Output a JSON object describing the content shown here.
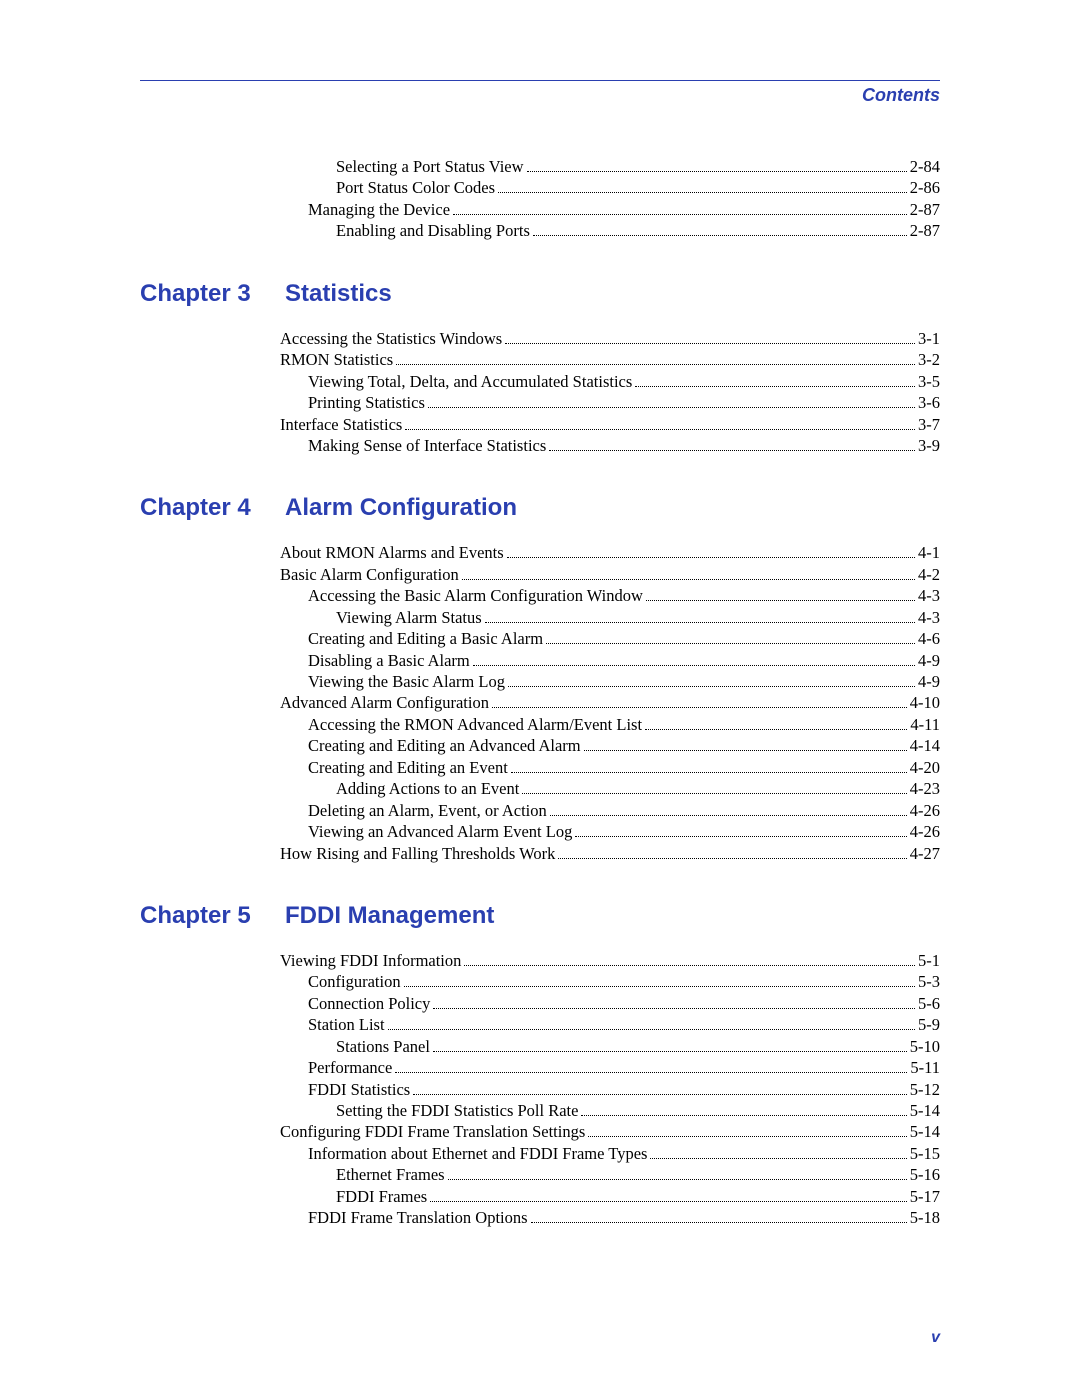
{
  "header": {
    "label": "Contents"
  },
  "page_number": "v",
  "colors": {
    "accent": "#2a3fb0",
    "text": "#000000",
    "background": "#ffffff"
  },
  "intro_entries": [
    {
      "title": "Selecting a Port Status View",
      "page": "2-84",
      "indent": 2
    },
    {
      "title": "Port Status Color Codes",
      "page": "2-86",
      "indent": 2
    },
    {
      "title": "Managing the Device",
      "page": "2-87",
      "indent": 1
    },
    {
      "title": "Enabling and Disabling Ports",
      "page": "2-87",
      "indent": 2
    }
  ],
  "chapters": [
    {
      "label": "Chapter 3",
      "title": "Statistics",
      "entries": [
        {
          "title": "Accessing the Statistics Windows",
          "page": "3-1",
          "indent": 0
        },
        {
          "title": "RMON Statistics",
          "page": "3-2",
          "indent": 0
        },
        {
          "title": "Viewing Total, Delta, and Accumulated Statistics",
          "page": "3-5",
          "indent": 1
        },
        {
          "title": "Printing Statistics",
          "page": "3-6",
          "indent": 1
        },
        {
          "title": "Interface Statistics",
          "page": "3-7",
          "indent": 0
        },
        {
          "title": "Making Sense of Interface Statistics",
          "page": "3-9",
          "indent": 1
        }
      ]
    },
    {
      "label": "Chapter 4",
      "title": "Alarm Configuration",
      "entries": [
        {
          "title": "About RMON Alarms and Events",
          "page": "4-1",
          "indent": 0
        },
        {
          "title": "Basic Alarm Configuration",
          "page": "4-2",
          "indent": 0
        },
        {
          "title": "Accessing the Basic Alarm Configuration Window",
          "page": "4-3",
          "indent": 1
        },
        {
          "title": "Viewing Alarm Status",
          "page": "4-3",
          "indent": 2
        },
        {
          "title": "Creating and Editing a Basic Alarm",
          "page": "4-6",
          "indent": 1
        },
        {
          "title": "Disabling a Basic Alarm",
          "page": "4-9",
          "indent": 1
        },
        {
          "title": "Viewing the Basic Alarm Log",
          "page": "4-9",
          "indent": 1
        },
        {
          "title": "Advanced Alarm Configuration",
          "page": "4-10",
          "indent": 0
        },
        {
          "title": "Accessing the RMON Advanced Alarm/Event List",
          "page": "4-11",
          "indent": 1
        },
        {
          "title": "Creating and Editing an Advanced Alarm",
          "page": "4-14",
          "indent": 1
        },
        {
          "title": "Creating and Editing an Event",
          "page": "4-20",
          "indent": 1
        },
        {
          "title": "Adding Actions to an Event",
          "page": "4-23",
          "indent": 2
        },
        {
          "title": "Deleting an Alarm, Event, or Action",
          "page": "4-26",
          "indent": 1
        },
        {
          "title": "Viewing an Advanced Alarm Event Log",
          "page": "4-26",
          "indent": 1
        },
        {
          "title": "How Rising and Falling Thresholds Work",
          "page": "4-27",
          "indent": 0
        }
      ]
    },
    {
      "label": "Chapter 5",
      "title": "FDDI Management",
      "entries": [
        {
          "title": "Viewing FDDI Information",
          "page": "5-1",
          "indent": 0
        },
        {
          "title": "Configuration",
          "page": "5-3",
          "indent": 1
        },
        {
          "title": "Connection Policy",
          "page": "5-6",
          "indent": 1
        },
        {
          "title": "Station List",
          "page": "5-9",
          "indent": 1
        },
        {
          "title": "Stations Panel",
          "page": "5-10",
          "indent": 2
        },
        {
          "title": "Performance",
          "page": "5-11",
          "indent": 1
        },
        {
          "title": "FDDI Statistics",
          "page": "5-12",
          "indent": 1
        },
        {
          "title": "Setting the FDDI Statistics Poll Rate",
          "page": "5-14",
          "indent": 2
        },
        {
          "title": "Configuring FDDI Frame Translation Settings",
          "page": "5-14",
          "indent": 0
        },
        {
          "title": "Information about Ethernet and FDDI Frame Types",
          "page": "5-15",
          "indent": 1
        },
        {
          "title": "Ethernet Frames",
          "page": "5-16",
          "indent": 2
        },
        {
          "title": "FDDI Frames",
          "page": "5-17",
          "indent": 2
        },
        {
          "title": "FDDI Frame Translation Options",
          "page": "5-18",
          "indent": 1
        }
      ]
    }
  ]
}
